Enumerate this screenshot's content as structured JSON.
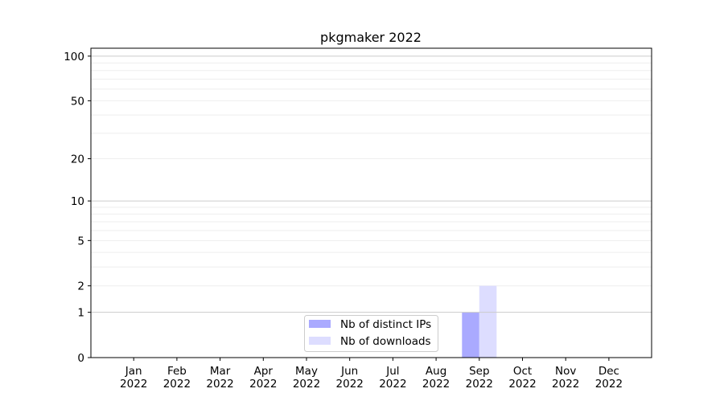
{
  "chart_data": {
    "type": "bar",
    "title": "pkgmaker 2022",
    "xlabel": "",
    "ylabel": "",
    "categories": [
      "Jan\n2022",
      "Feb\n2022",
      "Mar\n2022",
      "Apr\n2022",
      "May\n2022",
      "Jun\n2022",
      "Jul\n2022",
      "Aug\n2022",
      "Sep\n2022",
      "Oct\n2022",
      "Nov\n2022",
      "Dec\n2022"
    ],
    "series": [
      {
        "name": "Nb of distinct IPs",
        "color": "#aaaaff",
        "values": [
          0,
          0,
          0,
          0,
          0,
          0,
          0,
          0,
          1,
          0,
          0,
          0
        ]
      },
      {
        "name": "Nb of downloads",
        "color": "#ddddff",
        "values": [
          0,
          0,
          0,
          0,
          0,
          0,
          0,
          0,
          2,
          0,
          0,
          0
        ]
      }
    ],
    "y_scale": "log(1+y)",
    "ylim": [
      0,
      113
    ],
    "y_ticks": [
      0,
      1,
      2,
      5,
      10,
      20,
      50,
      100
    ],
    "y_major_grid": [
      1,
      10,
      100
    ],
    "y_minor_grid": [
      2,
      3,
      4,
      5,
      6,
      7,
      8,
      9,
      20,
      30,
      40,
      50,
      60,
      70,
      80,
      90
    ],
    "grid": true,
    "legend_position": "lower-center"
  }
}
